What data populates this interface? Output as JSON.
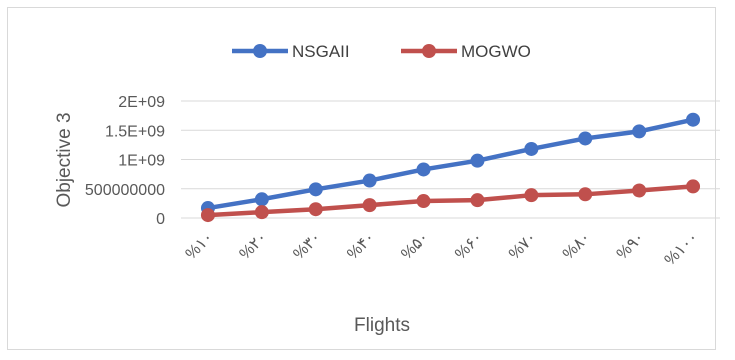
{
  "chart_data": {
    "type": "line",
    "title": "",
    "xlabel": "Flights",
    "ylabel": "Objective 3",
    "categories": [
      "%۱۰",
      "%۲۰",
      "%۳۰",
      "%۴۰",
      "%۵۰",
      "%۶۰",
      "%۷۰",
      "%۸۰",
      "%۹۰",
      "%۱۰۰"
    ],
    "y_ticks": [
      {
        "value": 0,
        "label": "0"
      },
      {
        "value": 500000000,
        "label": "500000000"
      },
      {
        "value": 1000000000,
        "label": "1E+09"
      },
      {
        "value": 1500000000,
        "label": "1.5E+09"
      },
      {
        "value": 2000000000,
        "label": "2E+09"
      }
    ],
    "ylim": [
      0,
      2000000000
    ],
    "grid": true,
    "legend_position": "top",
    "series": [
      {
        "name": "NSGAII",
        "color": "#4472c4",
        "values": [
          170000000,
          320000000,
          490000000,
          640000000,
          830000000,
          980000000,
          1180000000,
          1360000000,
          1480000000,
          1680000000
        ]
      },
      {
        "name": "MOGWO",
        "color": "#c0504d",
        "values": [
          50000000,
          100000000,
          150000000,
          220000000,
          290000000,
          305000000,
          390000000,
          405000000,
          470000000,
          540000000
        ]
      }
    ]
  }
}
